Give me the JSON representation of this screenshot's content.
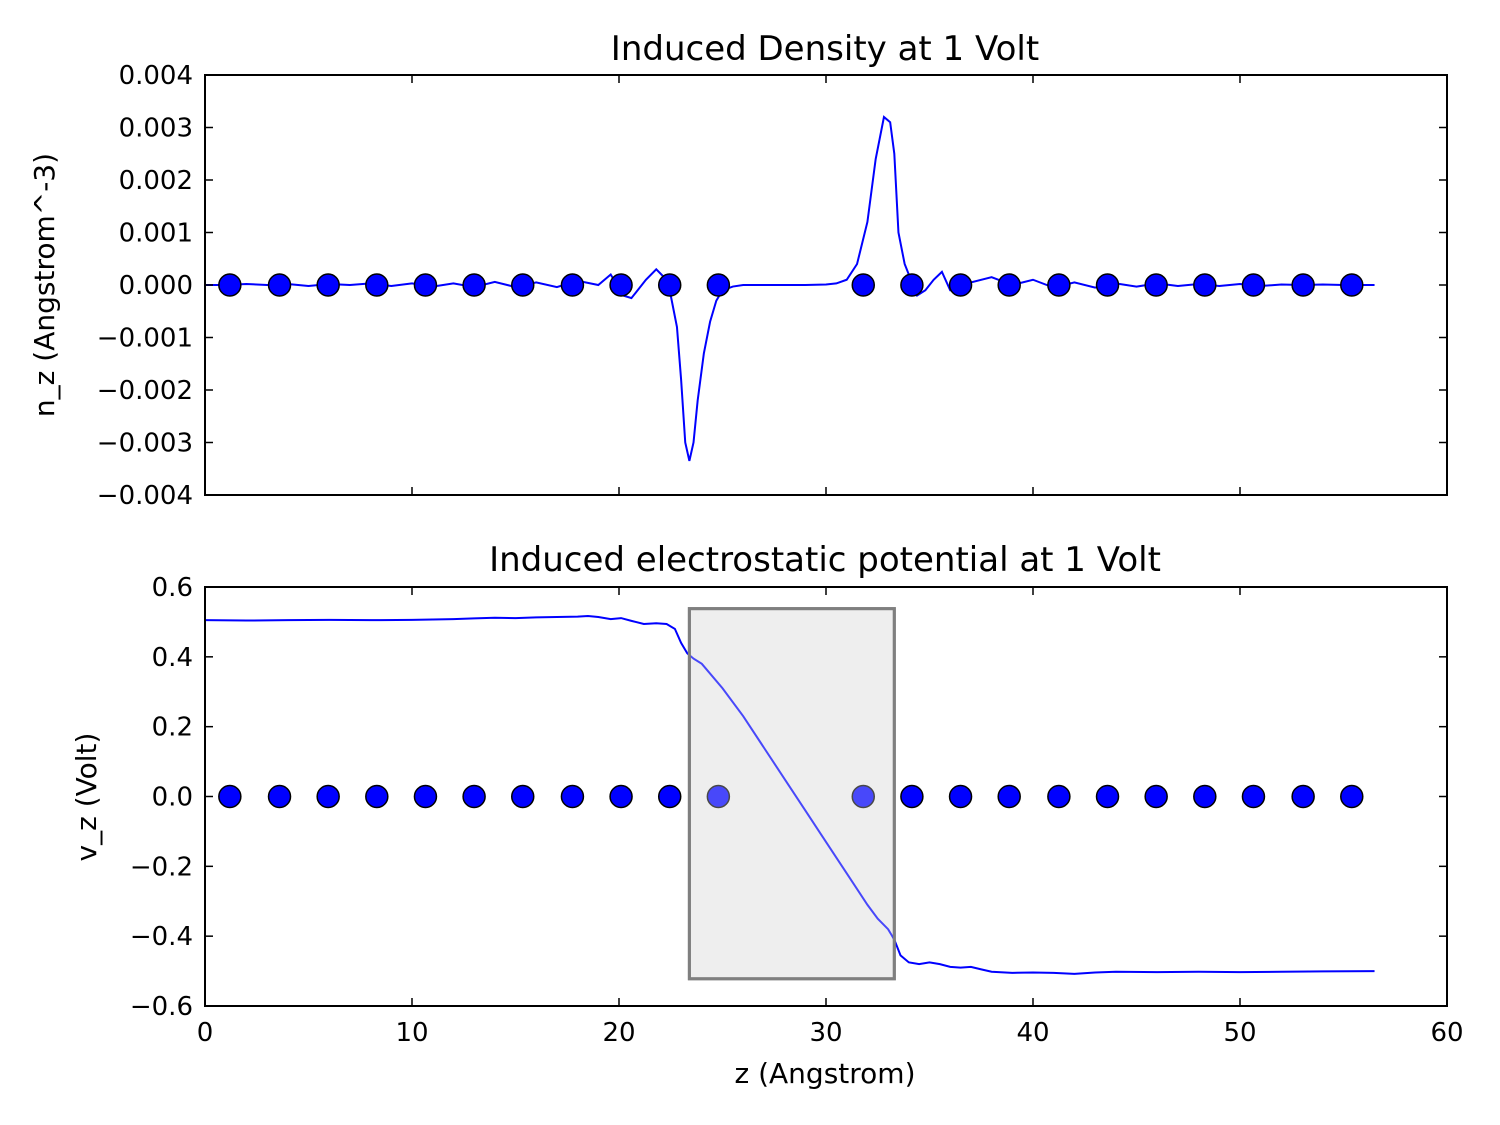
{
  "colors": {
    "series": "#0000ff",
    "dot_fill": "#0000ff",
    "dot_stroke": "#000000",
    "box_fill": "#eeeeee",
    "box_stroke": "#7f7f7f",
    "axis": "#000000"
  },
  "chart_data": [
    {
      "type": "line",
      "title": "Induced Density at 1 Volt",
      "xlabel": "",
      "ylabel": "n_z (Angstrom^-3)",
      "xlim": [
        0,
        60
      ],
      "ylim": [
        -0.004,
        0.004
      ],
      "x_ticks": [
        0,
        10,
        20,
        30,
        40,
        50,
        60
      ],
      "y_ticks": [
        -0.004,
        -0.003,
        -0.002,
        -0.001,
        0.0,
        0.001,
        0.002,
        0.003,
        0.004
      ],
      "y_tick_labels": [
        "−0.004",
        "−0.003",
        "−0.002",
        "−0.001",
        "0.000",
        "0.001",
        "0.002",
        "0.003",
        "0.004"
      ],
      "show_x_tick_labels": false,
      "grid": false,
      "series": [
        {
          "x": [
            0,
            1,
            2,
            3,
            4,
            5,
            6,
            7,
            8,
            9,
            10,
            11,
            12,
            13,
            14,
            15,
            16,
            17,
            18,
            19,
            19.6,
            20.2,
            20.6,
            21.3,
            21.8,
            22.3,
            22.5,
            22.8,
            23.0,
            23.2,
            23.4,
            23.6,
            23.8,
            24.1,
            24.4,
            24.7,
            25.0,
            25.5,
            26.0,
            27.0,
            28.0,
            29.0,
            30.0,
            30.5,
            31.0,
            31.5,
            32.0,
            32.4,
            32.8,
            33.1,
            33.3,
            33.5,
            33.8,
            34.1,
            34.4,
            34.8,
            35.2,
            35.6,
            36.0,
            36.4,
            37.0,
            38.0,
            39.0,
            40.0,
            41.0,
            42.0,
            43.0,
            44.0,
            45.0,
            46.0,
            47.0,
            48.0,
            49.0,
            50.0,
            51.0,
            52.0,
            53.0,
            54.0,
            55.0,
            56.5
          ],
          "y": [
            0.0,
            0.0,
            2e-05,
            0.0,
            2e-05,
            -2e-05,
            2e-05,
            0.0,
            3e-05,
            -2e-05,
            3e-05,
            -3e-05,
            3e-05,
            -4e-05,
            6e-05,
            -4e-05,
            5e-05,
            -4e-05,
            8e-05,
            0.0,
            0.0002,
            -0.0002,
            -0.00025,
            0.0001,
            0.0003,
            0.0001,
            -0.0002,
            -0.0008,
            -0.0018,
            -0.003,
            -0.00335,
            -0.003,
            -0.0022,
            -0.0013,
            -0.0007,
            -0.0003,
            -0.0001,
            -3e-05,
            0.0,
            0.0,
            0.0,
            0.0,
            1e-05,
            3e-05,
            0.0001,
            0.0004,
            0.0012,
            0.0024,
            0.0032,
            0.0031,
            0.0025,
            0.001,
            0.0004,
            0.0001,
            -0.0002,
            -0.0001,
            0.0001,
            0.00025,
            -0.0001,
            -0.0001,
            5e-05,
            0.00015,
            0.0,
            0.0001,
            -5e-05,
            5e-05,
            -5e-05,
            3e-05,
            -3e-05,
            3e-05,
            -2e-05,
            2e-05,
            -2e-05,
            2e-05,
            -2e-05,
            1e-05,
            0.0,
            1e-05,
            0.0,
            0.0
          ]
        }
      ],
      "atoms": {
        "x": [
          1.2,
          3.6,
          5.95,
          8.3,
          10.65,
          13.0,
          15.35,
          17.75,
          20.1,
          22.45,
          24.8,
          31.8,
          34.15,
          36.5,
          38.85,
          41.25,
          43.6,
          45.95,
          48.3,
          50.65,
          53.05,
          55.4
        ],
        "y": 0.0
      }
    },
    {
      "type": "line",
      "title": "Induced electrostatic potential at 1 Volt",
      "xlabel": "z (Angstrom)",
      "ylabel": "v_z (Volt)",
      "xlim": [
        0,
        60
      ],
      "ylim": [
        -0.6,
        0.6
      ],
      "x_ticks": [
        0,
        10,
        20,
        30,
        40,
        50,
        60
      ],
      "y_ticks": [
        -0.6,
        -0.4,
        -0.2,
        0.0,
        0.2,
        0.4,
        0.6
      ],
      "y_tick_labels": [
        "−0.6",
        "−0.4",
        "−0.2",
        "0.0",
        "0.2",
        "0.4",
        "0.6"
      ],
      "show_x_tick_labels": true,
      "grid": false,
      "series": [
        {
          "x": [
            0,
            2,
            4,
            6,
            8,
            10,
            12,
            13,
            14,
            15,
            16,
            17,
            18,
            18.5,
            19,
            19.6,
            20.1,
            20.6,
            21.2,
            21.8,
            22.3,
            22.7,
            23.0,
            23.3,
            23.6,
            24.0,
            25.0,
            26.0,
            27.0,
            28.0,
            29.0,
            30.0,
            31.0,
            32.0,
            32.5,
            33.0,
            33.3,
            33.6,
            34.0,
            34.5,
            35.0,
            35.5,
            36.0,
            36.5,
            37.0,
            37.5,
            38.0,
            39.0,
            40.0,
            41.0,
            42.0,
            43.0,
            44.0,
            46.0,
            48.0,
            50.0,
            52.0,
            54.0,
            56.5
          ],
          "y": [
            0.505,
            0.504,
            0.505,
            0.506,
            0.505,
            0.506,
            0.508,
            0.51,
            0.512,
            0.511,
            0.513,
            0.514,
            0.515,
            0.517,
            0.514,
            0.508,
            0.511,
            0.503,
            0.494,
            0.496,
            0.494,
            0.48,
            0.44,
            0.41,
            0.395,
            0.38,
            0.31,
            0.23,
            0.14,
            0.05,
            -0.04,
            -0.13,
            -0.22,
            -0.31,
            -0.35,
            -0.38,
            -0.41,
            -0.455,
            -0.475,
            -0.48,
            -0.475,
            -0.48,
            -0.488,
            -0.49,
            -0.488,
            -0.495,
            -0.502,
            -0.505,
            -0.504,
            -0.505,
            -0.508,
            -0.504,
            -0.502,
            -0.503,
            -0.502,
            -0.503,
            -0.502,
            -0.501,
            -0.5
          ]
        }
      ],
      "highlight_box": {
        "x0": 23.4,
        "x1": 33.3,
        "y0": -0.522,
        "y1": 0.538
      },
      "atoms": {
        "x": [
          1.2,
          3.6,
          5.95,
          8.3,
          10.65,
          13.0,
          15.35,
          17.75,
          20.1,
          22.45,
          24.8,
          31.8,
          34.15,
          36.5,
          38.85,
          41.25,
          43.6,
          45.95,
          48.3,
          50.65,
          53.05,
          55.4
        ],
        "y": 0.0
      }
    }
  ]
}
